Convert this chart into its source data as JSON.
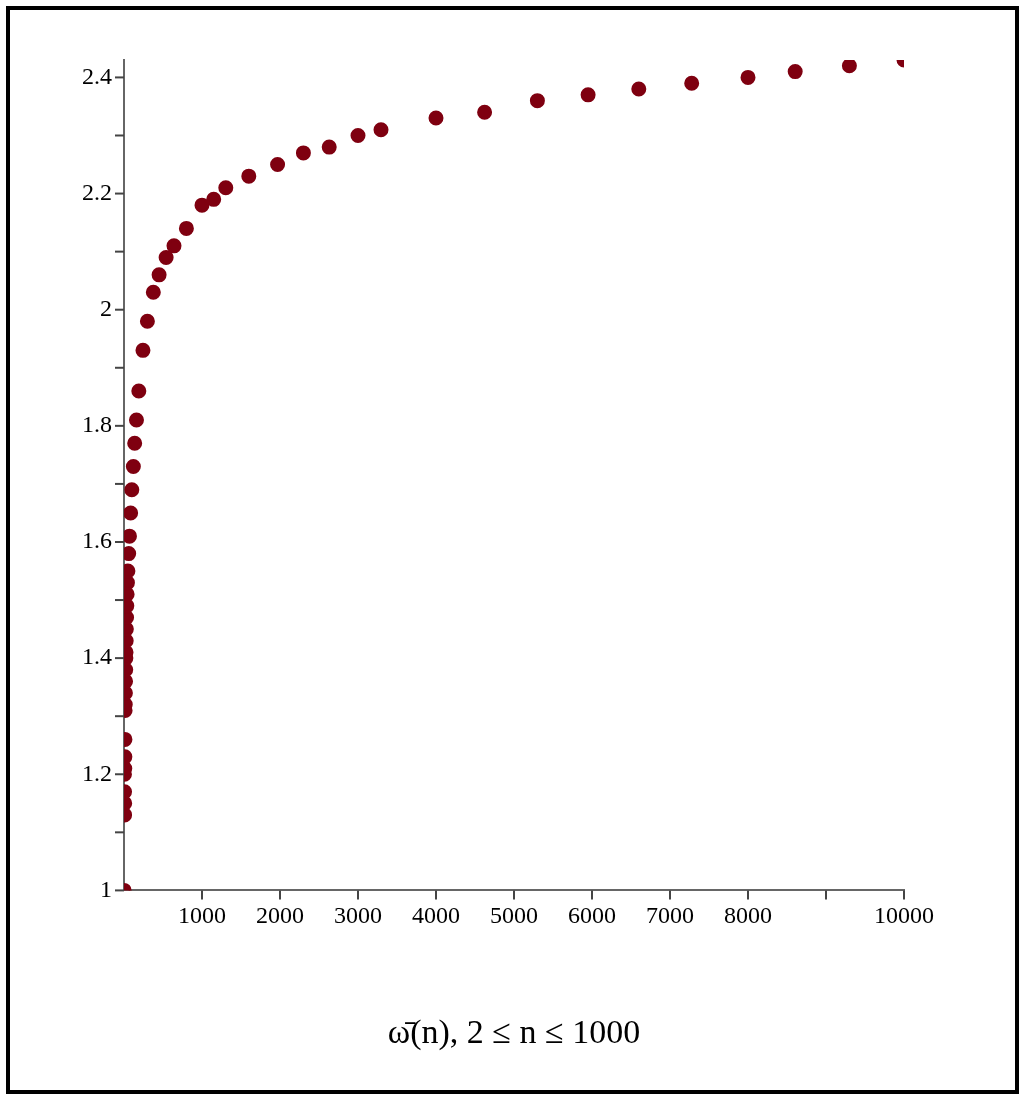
{
  "chart_data": {
    "type": "scatter",
    "xlabel": "ω̄(n), 2 ≤ n ≤ 1000",
    "marker": "circle",
    "grid": false,
    "legend": false,
    "xlim": [
      0,
      10000
    ],
    "xticks": [
      1000,
      2000,
      3000,
      4000,
      5000,
      6000,
      7000,
      8000,
      {
        "value": 9000,
        "label": null
      },
      10000
    ],
    "ylim": [
      1,
      2.43
    ],
    "yticks": [
      1,
      {
        "value": 1.1,
        "label": null
      },
      1.2,
      {
        "value": 1.3,
        "label": null
      },
      1.4,
      {
        "value": 1.5,
        "label": null
      },
      1.6,
      {
        "value": 1.7,
        "label": null
      },
      1.8,
      {
        "value": 1.9,
        "label": null
      },
      2,
      {
        "value": 2.1,
        "label": null
      },
      2.2,
      {
        "value": 2.3,
        "label": null
      },
      2.4
    ],
    "series": [
      {
        "color": "#7f0010",
        "x": [
          2,
          8,
          9,
          7,
          6,
          10,
          11,
          12,
          14,
          16,
          18,
          20,
          22,
          24,
          26,
          28,
          30,
          33,
          36,
          40,
          44,
          50,
          60,
          70,
          85,
          100,
          120,
          137,
          160,
          190,
          243,
          300,
          376,
          450,
          540,
          641,
          800,
          1000,
          1150,
          1305,
          1600,
          1969,
          2300,
          2631,
          3000,
          3295,
          4000,
          4623,
          5300,
          5950,
          6600,
          7278,
          8000,
          8605,
          9300,
          10000
        ],
        "values": [
          1,
          1.13,
          1.15,
          1.17,
          1.2,
          1.21,
          1.23,
          1.26,
          1.31,
          1.32,
          1.34,
          1.36,
          1.38,
          1.4,
          1.41,
          1.43,
          1.45,
          1.47,
          1.49,
          1.51,
          1.53,
          1.55,
          1.58,
          1.61,
          1.65,
          1.69,
          1.73,
          1.77,
          1.81,
          1.86,
          1.93,
          1.98,
          2.03,
          2.06,
          2.09,
          2.11,
          2.14,
          2.18,
          2.19,
          2.21,
          2.23,
          2.25,
          2.27,
          2.28,
          2.3,
          2.31,
          2.33,
          2.34,
          2.36,
          2.37,
          2.38,
          2.39,
          2.4,
          2.41,
          2.42,
          2.43
        ]
      }
    ]
  }
}
